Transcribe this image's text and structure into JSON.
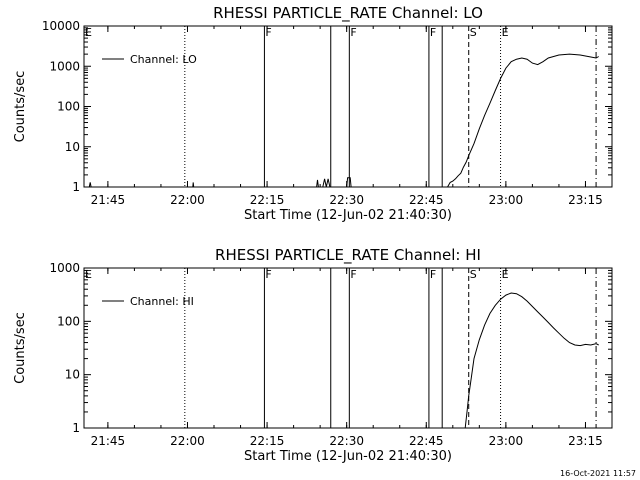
{
  "timestamp": "16-Oct-2021 11:57",
  "chart_data": [
    {
      "type": "line",
      "title": "RHESSI PARTICLE_RATE Channel: LO",
      "xlabel": "Start Time (12-Jun-02 21:40:30)",
      "ylabel": "Counts/sec",
      "yscale": "log",
      "xlim": [
        "21:40:30",
        "23:20:00"
      ],
      "ylim": [
        1,
        10000
      ],
      "x_ticks": [
        "21:45",
        "22:00",
        "22:15",
        "22:30",
        "22:45",
        "23:00",
        "23:15"
      ],
      "y_ticks": [
        "1",
        "10",
        "100",
        "1000",
        "10000"
      ],
      "legend": {
        "position": "top-left",
        "entries": [
          "Channel: LO"
        ]
      },
      "event_markers": [
        {
          "label": "E",
          "time": "21:40:30",
          "style": "dotted"
        },
        {
          "label": "",
          "time": "21:59:30",
          "style": "dotted"
        },
        {
          "label": "F",
          "time": "22:14:30",
          "style": "solid"
        },
        {
          "label": "",
          "time": "22:27:00",
          "style": "solid"
        },
        {
          "label": "F",
          "time": "22:30:30",
          "style": "solid"
        },
        {
          "label": "F",
          "time": "22:45:30",
          "style": "solid"
        },
        {
          "label": "",
          "time": "22:48:00",
          "style": "solid"
        },
        {
          "label": "S",
          "time": "22:53:00",
          "style": "dashed"
        },
        {
          "label": "E",
          "time": "22:59:00",
          "style": "dotted"
        },
        {
          "label": "",
          "time": "23:17:00",
          "style": "dashdot"
        }
      ],
      "series": [
        {
          "name": "Channel: LO",
          "segments": [
            [
              [
                "21:41:30",
                1
              ],
              [
                "21:41:40",
                1.3
              ],
              [
                "21:41:50",
                1
              ]
            ],
            [
              [
                "22:01:00",
                1
              ],
              [
                "22:01:05",
                1.3
              ],
              [
                "22:01:10",
                1
              ]
            ],
            [
              [
                "22:24:20",
                1
              ],
              [
                "22:24:30",
                1.5
              ],
              [
                "22:24:40",
                1
              ]
            ],
            [
              [
                "22:25:30",
                1
              ],
              [
                "22:25:50",
                1.6
              ],
              [
                "22:26:10",
                1
              ],
              [
                "22:26:30",
                1.6
              ],
              [
                "22:26:50",
                1
              ]
            ],
            [
              [
                "22:30:00",
                1
              ],
              [
                "22:30:10",
                1.7
              ],
              [
                "22:30:40",
                1.7
              ],
              [
                "22:30:50",
                1
              ]
            ],
            [
              [
                "22:49:00",
                1
              ],
              [
                "22:49:30",
                1.3
              ],
              [
                "22:50:00",
                1.4
              ],
              [
                "22:50:30",
                1.6
              ],
              [
                "22:51:00",
                1.9
              ],
              [
                "22:51:30",
                2.2
              ],
              [
                "22:52:00",
                3.1
              ],
              [
                "22:52:30",
                4.1
              ],
              [
                "22:53:00",
                6
              ],
              [
                "22:54:00",
                12
              ],
              [
                "22:55:00",
                28
              ],
              [
                "22:56:00",
                60
              ],
              [
                "22:57:00",
                120
              ],
              [
                "22:58:00",
                250
              ],
              [
                "22:59:00",
                500
              ],
              [
                "23:00:00",
                900
              ],
              [
                "23:01:00",
                1300
              ],
              [
                "23:02:00",
                1500
              ],
              [
                "23:03:00",
                1600
              ],
              [
                "23:04:00",
                1500
              ],
              [
                "23:05:00",
                1200
              ],
              [
                "23:06:00",
                1100
              ],
              [
                "23:07:00",
                1300
              ],
              [
                "23:08:00",
                1600
              ],
              [
                "23:10:00",
                1900
              ],
              [
                "23:12:00",
                2000
              ],
              [
                "23:14:00",
                1900
              ],
              [
                "23:16:00",
                1700
              ],
              [
                "23:17:00",
                1600
              ],
              [
                "23:17:30",
                1750
              ]
            ]
          ]
        }
      ]
    },
    {
      "type": "line",
      "title": "RHESSI PARTICLE_RATE Channel: HI",
      "xlabel": "Start Time (12-Jun-02 21:40:30)",
      "ylabel": "Counts/sec",
      "yscale": "log",
      "xlim": [
        "21:40:30",
        "23:20:00"
      ],
      "ylim": [
        1,
        1000
      ],
      "x_ticks": [
        "21:45",
        "22:00",
        "22:15",
        "22:30",
        "22:45",
        "23:00",
        "23:15"
      ],
      "y_ticks": [
        "1",
        "10",
        "100",
        "1000"
      ],
      "legend": {
        "position": "top-left",
        "entries": [
          "Channel: HI"
        ]
      },
      "event_markers": [
        {
          "label": "E",
          "time": "21:40:30",
          "style": "dotted"
        },
        {
          "label": "",
          "time": "21:59:30",
          "style": "dotted"
        },
        {
          "label": "F",
          "time": "22:14:30",
          "style": "solid"
        },
        {
          "label": "",
          "time": "22:27:00",
          "style": "solid"
        },
        {
          "label": "F",
          "time": "22:30:30",
          "style": "solid"
        },
        {
          "label": "F",
          "time": "22:45:30",
          "style": "solid"
        },
        {
          "label": "",
          "time": "22:48:00",
          "style": "solid"
        },
        {
          "label": "S",
          "time": "22:53:00",
          "style": "dashed"
        },
        {
          "label": "E",
          "time": "22:59:00",
          "style": "dotted"
        },
        {
          "label": "",
          "time": "23:17:00",
          "style": "dashdot"
        }
      ],
      "series": [
        {
          "name": "Channel: HI",
          "segments": [
            [
              [
                "22:52:20",
                1
              ],
              [
                "22:52:40",
                2
              ],
              [
                "22:53:00",
                4
              ],
              [
                "22:53:30",
                9
              ],
              [
                "22:54:00",
                20
              ],
              [
                "22:55:00",
                45
              ],
              [
                "22:56:00",
                85
              ],
              [
                "22:57:00",
                140
              ],
              [
                "22:58:00",
                200
              ],
              [
                "22:59:00",
                260
              ],
              [
                "23:00:00",
                310
              ],
              [
                "23:01:00",
                340
              ],
              [
                "23:02:00",
                330
              ],
              [
                "23:03:00",
                290
              ],
              [
                "23:04:00",
                240
              ],
              [
                "23:05:00",
                190
              ],
              [
                "23:06:00",
                150
              ],
              [
                "23:07:00",
                120
              ],
              [
                "23:08:00",
                95
              ],
              [
                "23:09:00",
                75
              ],
              [
                "23:10:00",
                60
              ],
              [
                "23:11:00",
                48
              ],
              [
                "23:12:00",
                40
              ],
              [
                "23:13:00",
                36
              ],
              [
                "23:14:00",
                35
              ],
              [
                "23:15:00",
                37
              ],
              [
                "23:16:00",
                36
              ],
              [
                "23:17:00",
                38
              ],
              [
                "23:17:30",
                36
              ]
            ]
          ]
        }
      ]
    }
  ]
}
